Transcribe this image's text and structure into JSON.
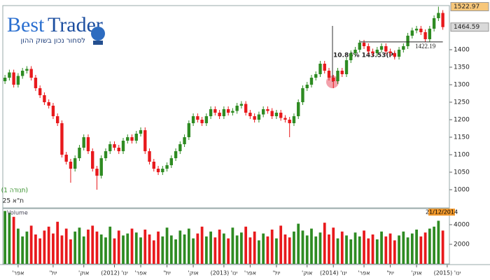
{
  "header": {
    "logo_best": "Best",
    "logo_trader": "Trader",
    "tagline": "לסחור נכון בשוק ההון"
  },
  "index_note": "(תנודה 1)",
  "index_name": "ת\"א 25",
  "chart_data": {
    "type": "candlestick",
    "up_color": "#2e8b22",
    "down_color": "#e8191c",
    "open": [
      1310,
      1320,
      1335,
      1300,
      1325,
      1340,
      1345,
      1320,
      1290,
      1270,
      1250,
      1240,
      1210,
      1190,
      1100,
      1080,
      1060,
      1090,
      1120,
      1150,
      1110,
      1060,
      1040,
      1090,
      1110,
      1130,
      1120,
      1110,
      1140,
      1150,
      1140,
      1160,
      1170,
      1110,
      1080,
      1060,
      1050,
      1060,
      1070,
      1090,
      1110,
      1130,
      1150,
      1190,
      1210,
      1200,
      1190,
      1210,
      1230,
      1220,
      1210,
      1230,
      1220,
      1225,
      1240,
      1245,
      1220,
      1210,
      1200,
      1215,
      1230,
      1225,
      1210,
      1220,
      1205,
      1200,
      1190,
      1210,
      1250,
      1290,
      1300,
      1320,
      1330,
      1360,
      1340,
      1320,
      1310,
      1340,
      1330,
      1370,
      1390,
      1400,
      1420,
      1410,
      1395,
      1390,
      1400,
      1410,
      1395,
      1390,
      1380,
      1400,
      1410,
      1440,
      1455,
      1460,
      1450,
      1430,
      1460,
      1490,
      1505
    ],
    "high": [
      1328,
      1343,
      1343,
      1333,
      1348,
      1353,
      1353,
      1328,
      1298,
      1278,
      1258,
      1248,
      1218,
      1198,
      1108,
      1088,
      1098,
      1128,
      1158,
      1158,
      1118,
      1068,
      1098,
      1118,
      1138,
      1138,
      1128,
      1148,
      1158,
      1158,
      1168,
      1178,
      1178,
      1118,
      1088,
      1068,
      1068,
      1078,
      1098,
      1118,
      1138,
      1158,
      1198,
      1218,
      1218,
      1208,
      1218,
      1238,
      1238,
      1228,
      1238,
      1238,
      1233,
      1248,
      1253,
      1253,
      1228,
      1218,
      1223,
      1238,
      1238,
      1233,
      1228,
      1228,
      1213,
      1208,
      1218,
      1258,
      1298,
      1308,
      1328,
      1338,
      1368,
      1368,
      1348,
      1328,
      1348,
      1348,
      1378,
      1398,
      1408,
      1428,
      1428,
      1418,
      1403,
      1408,
      1418,
      1418,
      1403,
      1398,
      1408,
      1418,
      1448,
      1463,
      1468,
      1468,
      1458,
      1468,
      1498,
      1522.97,
      1513
    ],
    "low": [
      1302,
      1312,
      1292,
      1292,
      1317,
      1332,
      1312,
      1282,
      1262,
      1242,
      1232,
      1202,
      1182,
      1092,
      1072,
      1020,
      1052,
      1082,
      1112,
      1102,
      1052,
      1000,
      1032,
      1082,
      1102,
      1112,
      1102,
      1102,
      1132,
      1132,
      1132,
      1152,
      1102,
      1072,
      1052,
      1042,
      1042,
      1052,
      1062,
      1082,
      1102,
      1122,
      1142,
      1182,
      1192,
      1182,
      1182,
      1202,
      1212,
      1202,
      1202,
      1212,
      1212,
      1217,
      1232,
      1212,
      1202,
      1192,
      1192,
      1207,
      1217,
      1202,
      1202,
      1197,
      1192,
      1150,
      1182,
      1202,
      1242,
      1282,
      1292,
      1312,
      1322,
      1332,
      1312,
      1290,
      1302,
      1322,
      1322,
      1362,
      1382,
      1392,
      1402,
      1387,
      1382,
      1382,
      1392,
      1387,
      1382,
      1372,
      1372,
      1392,
      1402,
      1432,
      1447,
      1442,
      1422,
      1422,
      1452,
      1482,
      1457
    ],
    "close": [
      1320,
      1335,
      1300,
      1325,
      1340,
      1345,
      1320,
      1290,
      1270,
      1250,
      1240,
      1210,
      1190,
      1100,
      1080,
      1060,
      1090,
      1120,
      1150,
      1110,
      1060,
      1040,
      1090,
      1110,
      1130,
      1120,
      1110,
      1140,
      1150,
      1140,
      1160,
      1170,
      1110,
      1080,
      1060,
      1050,
      1060,
      1070,
      1090,
      1110,
      1130,
      1150,
      1190,
      1210,
      1200,
      1190,
      1210,
      1230,
      1220,
      1210,
      1230,
      1220,
      1225,
      1240,
      1245,
      1220,
      1210,
      1200,
      1215,
      1230,
      1225,
      1210,
      1220,
      1205,
      1200,
      1190,
      1210,
      1250,
      1290,
      1300,
      1320,
      1330,
      1360,
      1340,
      1320,
      1310,
      1340,
      1330,
      1370,
      1390,
      1400,
      1420,
      1410,
      1395,
      1390,
      1400,
      1410,
      1395,
      1390,
      1380,
      1400,
      1410,
      1440,
      1455,
      1460,
      1450,
      1430,
      1460,
      1490,
      1505,
      1464.59
    ],
    "volume": [
      5400,
      5200,
      4800,
      3600,
      2800,
      3300,
      3900,
      3000,
      2600,
      3400,
      3800,
      3100,
      4300,
      2900,
      3600,
      2500,
      3300,
      3700,
      2800,
      3500,
      3900,
      3300,
      3000,
      2700,
      3800,
      2600,
      3400,
      2900,
      3100,
      3600,
      3200,
      2700,
      3500,
      3000,
      2400,
      3300,
      2800,
      3700,
      2900,
      2500,
      3400,
      3000,
      3600,
      2600,
      3100,
      3800,
      2800,
      3300,
      2700,
      3500,
      3100,
      2600,
      3700,
      2900,
      3200,
      3800,
      2700,
      3300,
      2400,
      3100,
      2800,
      3500,
      2600,
      3900,
      3000,
      2700,
      3300,
      4100,
      3400,
      2900,
      3600,
      2800,
      3200,
      4200,
      3000,
      3700,
      2600,
      3300,
      2900,
      2500,
      3200,
      2800,
      3400,
      2600,
      3000,
      2500,
      3300,
      2800,
      3100,
      2400,
      2900,
      3300,
      2700,
      3100,
      3500,
      2800,
      3200,
      3600,
      3800,
      4400,
      3400
    ],
    "xlim": [
      -0.5,
      101.5
    ],
    "xticks": [
      {
        "value": 3,
        "label": "אפר'"
      },
      {
        "value": 11,
        "label": "יול'"
      },
      {
        "value": 18,
        "label": "אוק'"
      },
      {
        "value": 25,
        "label": "ינו' (2012)"
      },
      {
        "value": 31,
        "label": "אפר'"
      },
      {
        "value": 37,
        "label": "יול'"
      },
      {
        "value": 43,
        "label": "אוק'"
      },
      {
        "value": 50,
        "label": "ינו' (2013)"
      },
      {
        "value": 56,
        "label": "אפר'"
      },
      {
        "value": 62,
        "label": "יול'"
      },
      {
        "value": 69,
        "label": "אוק'"
      },
      {
        "value": 75,
        "label": "ינו' (2014)"
      },
      {
        "value": 82,
        "label": "אפר'"
      },
      {
        "value": 88,
        "label": "יול'"
      },
      {
        "value": 94,
        "label": "אוק'"
      },
      {
        "value": 101,
        "label": "ינו' (2015)"
      }
    ],
    "ylim": [
      948,
      1526
    ],
    "yticks": [
      1000,
      1050,
      1100,
      1150,
      1200,
      1250,
      1300,
      1350,
      1400
    ],
    "volume_ylim": [
      0,
      5640
    ],
    "volume_yticks": [
      2000,
      4000
    ],
    "volume_label": "Volume",
    "date_label": "21/12/2014",
    "price_markers": [
      {
        "value": 1522.97,
        "color": "#f7c77a"
      },
      {
        "value": 1464.59,
        "color": "#d9d9d9"
      }
    ],
    "change_annotation": "10.86% 143.53(P)",
    "level_annotation": 1422.19
  }
}
